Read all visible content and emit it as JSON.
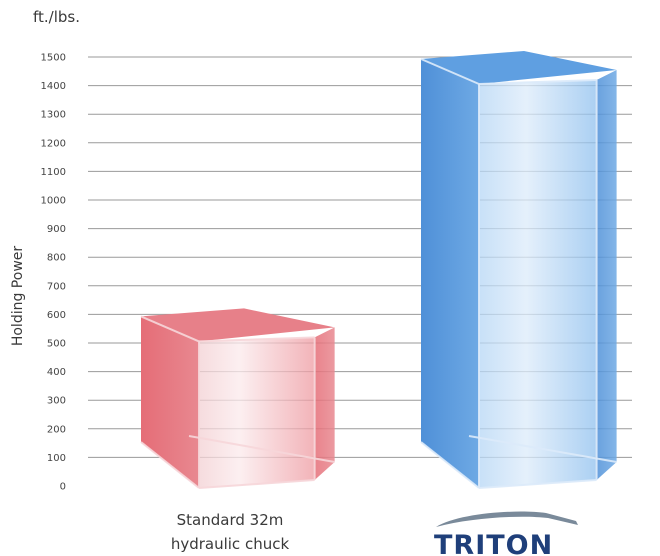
{
  "chart_data": {
    "type": "bar",
    "unit_label": "ft./lbs.",
    "ylabel": "Holding Power",
    "ylim": [
      0,
      1500
    ],
    "yticks": [
      0,
      100,
      200,
      300,
      400,
      500,
      600,
      700,
      800,
      900,
      1000,
      1100,
      1200,
      1300,
      1400,
      1500
    ],
    "grid": true,
    "categories": [
      "Standard 32m hydraulic chuck",
      "TRITON"
    ],
    "values": [
      600,
      1500
    ],
    "colors": [
      "#e8767f",
      "#5b9ee0"
    ]
  },
  "labels": {
    "cat1_line1": "Standard 32m",
    "cat1_line2": "hydraulic chuck",
    "logo_text": "TRITON"
  }
}
